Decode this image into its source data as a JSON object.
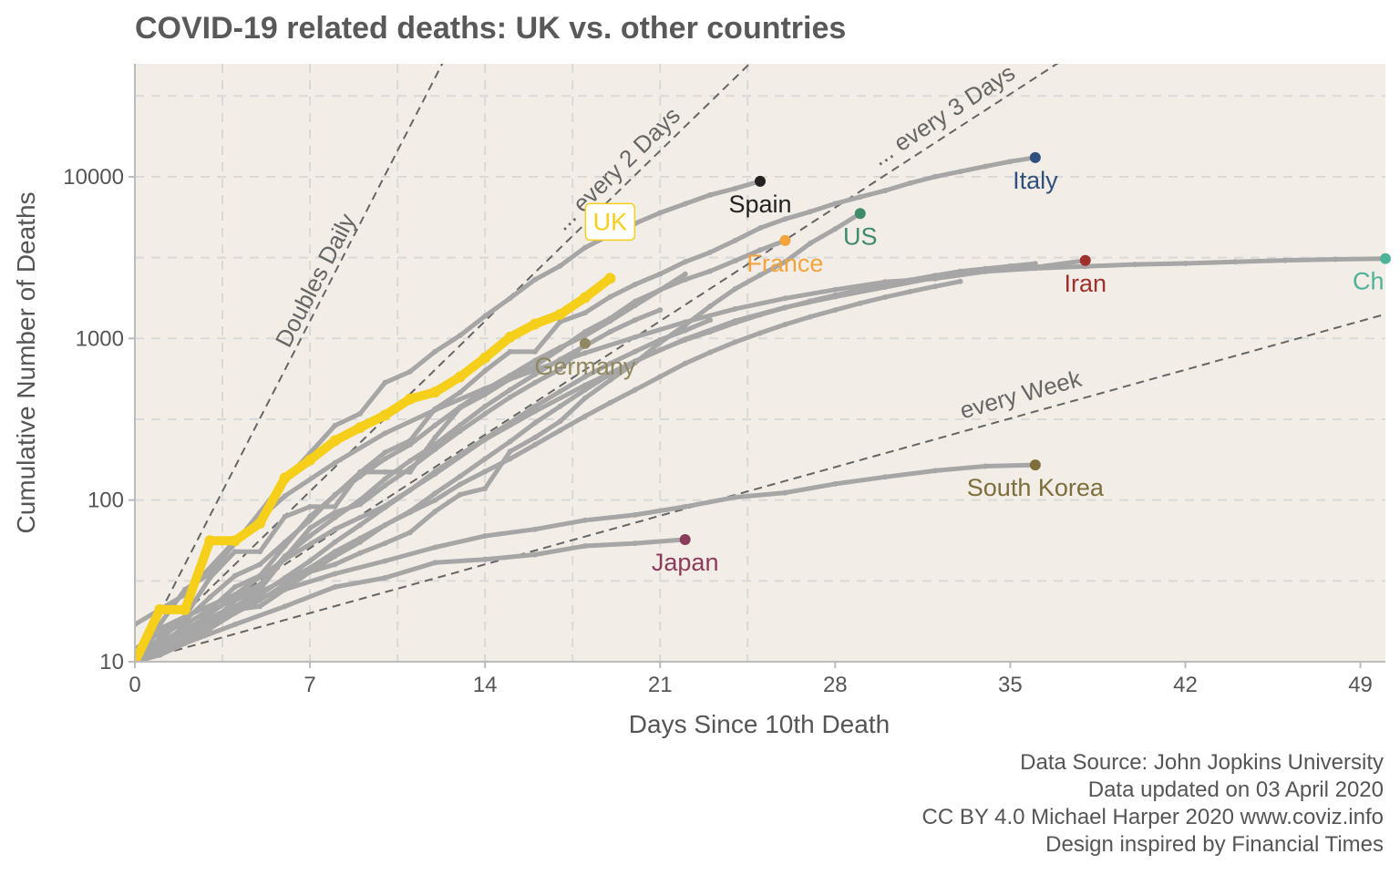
{
  "chart_data": {
    "type": "line",
    "title": "COVID-19 related deaths: UK vs. other countries",
    "xlabel": "Days Since 10th Death",
    "ylabel": "Cumulative Number of Deaths",
    "y_scale": "log10",
    "xlim": [
      0,
      50
    ],
    "ylim": [
      10,
      50000
    ],
    "x_ticks": [
      0,
      7,
      14,
      21,
      28,
      35,
      42,
      49
    ],
    "y_ticks": [
      10,
      100,
      1000,
      10000
    ],
    "y_tick_labels": [
      "10",
      "100",
      "1000",
      "10000"
    ],
    "grid": true,
    "background": "#f2ede6",
    "grid_color": "#d9d9d9",
    "highlight_color": "#f5cf1a",
    "other_series_color": "#a6a6a6",
    "caption": [
      "Data Source: John Jopkins University",
      "Data updated on 03 April 2020",
      "CC BY 4.0 Michael Harper 2020 www.coviz.info",
      "Design inspired by Financial Times"
    ],
    "reference_lines": [
      {
        "label": "Doubles Daily",
        "doubling_days": 1
      },
      {
        "label": "... every 2 Days",
        "doubling_days": 2
      },
      {
        "label": "... every 3 Days",
        "doubling_days": 3
      },
      {
        "label": "every  Week",
        "doubling_days": 7
      }
    ],
    "series": [
      {
        "name": "UK",
        "color": "#f5cf1a",
        "highlight": true,
        "label_boxed": true,
        "x": [
          0,
          1,
          2,
          3,
          4,
          5,
          6,
          7,
          8,
          9,
          10,
          11,
          12,
          13,
          14,
          15,
          16,
          17,
          18,
          19
        ],
        "y": [
          10,
          21,
          21,
          56,
          56,
          72,
          137,
          177,
          233,
          281,
          335,
          422,
          465,
          578,
          759,
          1019,
          1228,
          1408,
          1789,
          2352
        ]
      },
      {
        "name": "Spain",
        "color": "#222222",
        "x": [
          0,
          1,
          2,
          3,
          4,
          5,
          6,
          7,
          8,
          9,
          10,
          11,
          12,
          13,
          14,
          15,
          16,
          17,
          18,
          19,
          20,
          21,
          22,
          23,
          24,
          25
        ],
        "y": [
          10,
          17,
          28,
          35,
          54,
          84,
          133,
          195,
          289,
          342,
          533,
          623,
          830,
          1043,
          1375,
          1772,
          2311,
          2808,
          3647,
          4365,
          5138,
          5982,
          6803,
          7716,
          8464,
          9387
        ]
      },
      {
        "name": "Italy",
        "color": "#2f4f7f",
        "x": [
          0,
          1,
          2,
          3,
          4,
          5,
          6,
          7,
          8,
          9,
          10,
          11,
          12,
          13,
          14,
          15,
          16,
          17,
          18,
          19,
          20,
          21,
          22,
          23,
          24,
          25,
          26,
          27,
          28,
          29,
          30,
          31,
          32,
          33,
          34,
          35,
          36
        ],
        "y": [
          10,
          12,
          17,
          21,
          29,
          34,
          52,
          79,
          107,
          148,
          197,
          233,
          366,
          463,
          631,
          827,
          827,
          1266,
          1441,
          1809,
          2158,
          2503,
          2978,
          3405,
          4032,
          4825,
          5476,
          6077,
          6820,
          7503,
          8215,
          9134,
          10023,
          10779,
          11591,
          12428,
          13155
        ]
      },
      {
        "name": "France",
        "color": "#f4a43c",
        "x": [
          0,
          1,
          2,
          3,
          4,
          5,
          6,
          7,
          8,
          9,
          10,
          11,
          12,
          13,
          14,
          15,
          16,
          17,
          18,
          19,
          20,
          21,
          22,
          23,
          24,
          25,
          26
        ],
        "y": [
          10,
          16,
          19,
          33,
          48,
          48,
          79,
          91,
          91,
          149,
          149,
          149,
          244,
          372,
          450,
          562,
          674,
          860,
          1100,
          1331,
          1696,
          1995,
          2314,
          2606,
          3024,
          3523,
          4032
        ]
      },
      {
        "name": "US",
        "color": "#3f8b6a",
        "x": [
          0,
          1,
          2,
          3,
          4,
          5,
          6,
          7,
          8,
          9,
          10,
          11,
          12,
          13,
          14,
          15,
          16,
          17,
          18,
          19,
          20,
          21,
          22,
          23,
          24,
          25,
          26,
          27,
          28,
          29
        ],
        "y": [
          11,
          12,
          14,
          17,
          21,
          22,
          28,
          36,
          40,
          47,
          54,
          63,
          85,
          108,
          118,
          200,
          244,
          307,
          427,
          552,
          706,
          942,
          1209,
          1581,
          2026,
          2467,
          2978,
          3873,
          4757,
          5926
        ]
      },
      {
        "name": "Iran",
        "color": "#a0302c",
        "x": [
          0,
          2,
          4,
          6,
          8,
          10,
          12,
          14,
          16,
          18,
          20,
          22,
          24,
          26,
          28,
          30,
          32,
          34,
          36,
          38
        ],
        "y": [
          12,
          19,
          26,
          43,
          66,
          92,
          145,
          237,
          354,
          514,
          724,
          988,
          1284,
          1556,
          1812,
          2077,
          2378,
          2640,
          2757,
          3036
        ]
      },
      {
        "name": "China",
        "label_text": "Ch",
        "color": "#4fb39a",
        "x": [
          0,
          2,
          4,
          6,
          8,
          10,
          12,
          14,
          16,
          18,
          20,
          22,
          24,
          26,
          28,
          30,
          32,
          34,
          36,
          38,
          40,
          42,
          44,
          46,
          48,
          50
        ],
        "y": [
          17,
          26,
          56,
          106,
          170,
          259,
          361,
          490,
          638,
          813,
          1018,
          1261,
          1523,
          1770,
          2004,
          2236,
          2345,
          2592,
          2715,
          2788,
          2870,
          2912,
          2977,
          3042,
          3085,
          3119
        ]
      },
      {
        "name": "Germany",
        "color": "#8f8760",
        "x": [
          0,
          1,
          2,
          3,
          4,
          5,
          6,
          7,
          8,
          9,
          10,
          11,
          12,
          13,
          14,
          15,
          16,
          17,
          18
        ],
        "y": [
          12,
          13,
          13,
          17,
          24,
          28,
          44,
          67,
          84,
          94,
          123,
          157,
          206,
          267,
          342,
          433,
          533,
          645,
          931
        ]
      },
      {
        "name": "South Korea",
        "color": "#7d6e3c",
        "x": [
          0,
          2,
          4,
          6,
          8,
          10,
          12,
          14,
          16,
          18,
          20,
          22,
          24,
          26,
          28,
          30,
          32,
          34,
          36
        ],
        "y": [
          11,
          16,
          22,
          28,
          35,
          42,
          51,
          60,
          66,
          75,
          81,
          91,
          104,
          111,
          126,
          139,
          152,
          162,
          165
        ]
      },
      {
        "name": "Japan",
        "color": "#8c3b5b",
        "x": [
          0,
          2,
          4,
          6,
          8,
          10,
          12,
          14,
          16,
          18,
          20,
          22
        ],
        "y": [
          10,
          13,
          17,
          22,
          29,
          33,
          41,
          43,
          46,
          52,
          54,
          57
        ]
      }
    ],
    "background_series": [
      {
        "x": [
          0,
          1,
          2,
          3,
          4,
          5,
          6,
          7,
          8,
          9,
          10,
          11,
          12,
          13,
          14,
          15,
          16,
          17,
          18,
          19,
          20,
          21,
          22
        ],
        "y": [
          10,
          14,
          18,
          25,
          34,
          40,
          55,
          75,
          108,
          140,
          180,
          220,
          290,
          376,
          480,
          590,
          730,
          880,
          1040,
          1280,
          1600,
          1990,
          2500
        ]
      },
      {
        "x": [
          0,
          1,
          2,
          3,
          4,
          5,
          6,
          7,
          8,
          9,
          10,
          11,
          12,
          13,
          14,
          15,
          16,
          17,
          18,
          19,
          20,
          21
        ],
        "y": [
          10,
          13,
          15,
          20,
          25,
          30,
          45,
          60,
          78,
          100,
          135,
          175,
          220,
          290,
          380,
          480,
          600,
          740,
          900,
          1100,
          1300,
          1500
        ]
      },
      {
        "x": [
          0,
          1,
          2,
          3,
          4,
          5,
          6,
          7,
          8,
          9,
          10,
          11,
          12,
          13,
          14,
          15,
          16,
          17,
          18,
          19,
          20,
          21,
          22,
          23,
          24,
          25,
          26,
          27,
          28,
          29,
          30,
          31,
          32,
          33,
          34,
          35,
          36
        ],
        "y": [
          10,
          11,
          13,
          16,
          20,
          24,
          30,
          36,
          45,
          55,
          70,
          85,
          110,
          140,
          180,
          230,
          300,
          380,
          480,
          600,
          720,
          850,
          980,
          1100,
          1250,
          1400,
          1550,
          1700,
          1850,
          2000,
          2150,
          2300,
          2450,
          2600,
          2700,
          2800,
          2900
        ]
      },
      {
        "x": [
          0,
          1,
          2,
          3,
          4,
          5,
          6,
          7,
          8,
          9,
          10,
          11,
          12,
          13,
          14,
          15,
          16,
          17,
          18,
          19,
          20,
          21,
          22,
          23
        ],
        "y": [
          10,
          12,
          14,
          17,
          21,
          26,
          33,
          42,
          55,
          70,
          90,
          115,
          150,
          190,
          240,
          300,
          380,
          470,
          580,
          700,
          830,
          980,
          1120,
          1300
        ]
      },
      {
        "x": [
          0,
          1,
          2,
          3,
          4,
          5,
          6,
          7,
          8,
          9,
          10,
          11,
          12,
          13,
          14,
          15,
          16,
          17,
          18,
          19,
          20,
          21,
          22,
          23,
          24,
          25,
          26,
          27,
          28,
          29,
          30,
          31,
          32,
          33
        ],
        "y": [
          11,
          13,
          15,
          18,
          22,
          27,
          32,
          38,
          48,
          58,
          70,
          84,
          100,
          125,
          150,
          180,
          220,
          270,
          330,
          400,
          480,
          580,
          700,
          820,
          950,
          1080,
          1220,
          1360,
          1500,
          1650,
          1800,
          1950,
          2100,
          2250
        ]
      }
    ]
  }
}
